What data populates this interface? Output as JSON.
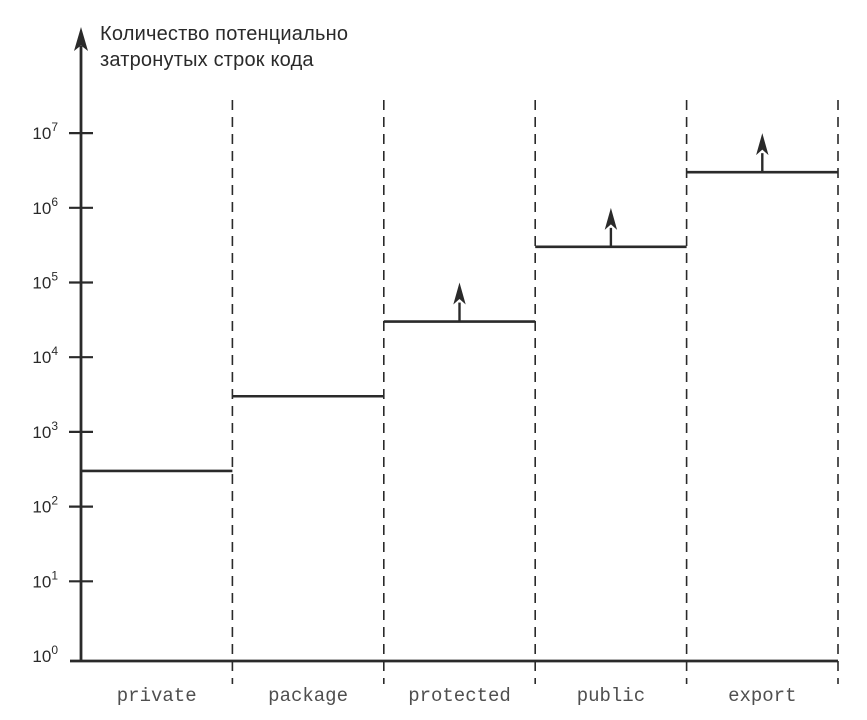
{
  "chart_data": {
    "type": "step",
    "title_lines": [
      "Количество потенциально",
      "затронутых строк кода"
    ],
    "ylabel": "Количество потенциально затронутых строк кода",
    "xlabel": "",
    "categories": [
      "private",
      "package",
      "protected",
      "public",
      "export"
    ],
    "values": [
      300,
      3000,
      30000,
      300000,
      3000000
    ],
    "open_ended": [
      false,
      false,
      true,
      true,
      true
    ],
    "open_ended_meaning": "up-arrow above level indicates value extends upward (open-ended)",
    "y_scale": "log10",
    "ylim": [
      1,
      10000000
    ],
    "y_tick_exponents": [
      0,
      1,
      2,
      3,
      4,
      5,
      6,
      7
    ],
    "y_tick_labels": [
      "10⁰",
      "10¹",
      "10²",
      "10³",
      "10⁴",
      "10⁵",
      "10⁶",
      "10⁷"
    ],
    "grid": "dashed vertical separators between categories, no horizontal gridlines",
    "legend": null,
    "colors": {
      "line": "#2a2a2a",
      "text": "#2a2a2a",
      "mono_label": "#4f4f4f",
      "background": "#ffffff"
    }
  }
}
